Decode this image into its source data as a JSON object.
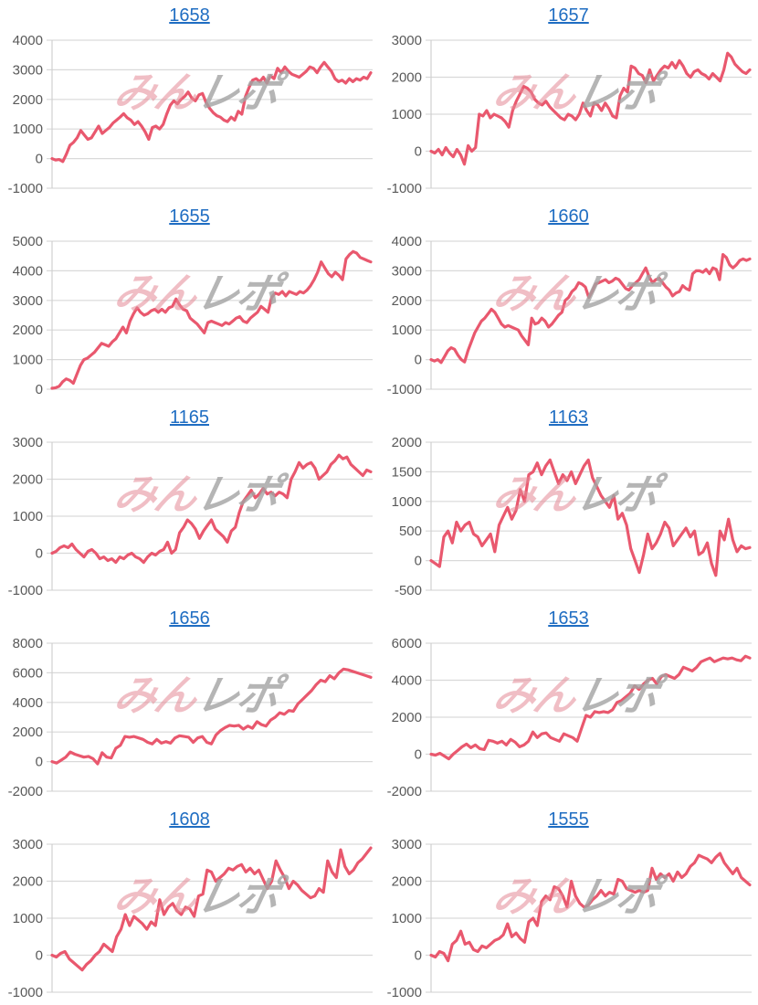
{
  "page": {
    "background": "#ffffff"
  },
  "colors": {
    "line": "#e9586e",
    "grid": "#d9d9d9",
    "axis_line": "#d0d0d0",
    "axis_label": "#595959",
    "title_link": "#1f6dc2",
    "watermark_pink": "#e58a97",
    "watermark_gray": "#a3a3a3"
  },
  "watermark": {
    "pink_text": "みん",
    "gray_text": "レポ"
  },
  "chart_data": [
    {
      "type": "line",
      "title": "1658",
      "xlabel": "",
      "ylabel": "",
      "ylim": [
        -1000,
        4000
      ],
      "yticks": [
        -1000,
        0,
        1000,
        2000,
        3000,
        4000
      ],
      "grid": true,
      "legend": "none",
      "values": [
        0,
        -50,
        -30,
        -100,
        150,
        450,
        550,
        700,
        950,
        800,
        650,
        700,
        900,
        1100,
        850,
        950,
        1050,
        1200,
        1300,
        1400,
        1520,
        1380,
        1300,
        1150,
        1250,
        1100,
        900,
        650,
        1050,
        1100,
        1000,
        1150,
        1500,
        1800,
        1950,
        1850,
        2000,
        2100,
        2250,
        2050,
        1950,
        2150,
        2200,
        1900,
        1700,
        1550,
        1450,
        1400,
        1300,
        1250,
        1400,
        1300,
        1600,
        1500,
        2100,
        2400,
        2650,
        2700,
        2600,
        2750,
        2550,
        2800,
        2700,
        3050,
        2900,
        3100,
        2950,
        2850,
        2800,
        2750,
        2850,
        2950,
        3100,
        3050,
        2900,
        3100,
        3250,
        3100,
        2950,
        2700,
        2600,
        2650,
        2550,
        2700,
        2600,
        2700,
        2650,
        2750,
        2700,
        2900
      ]
    },
    {
      "type": "line",
      "title": "1657",
      "xlabel": "",
      "ylabel": "",
      "ylim": [
        -1000,
        3000
      ],
      "yticks": [
        -1000,
        0,
        1000,
        2000,
        3000
      ],
      "grid": true,
      "legend": "none",
      "values": [
        0,
        -50,
        50,
        -100,
        100,
        -50,
        -150,
        50,
        -100,
        -350,
        150,
        0,
        100,
        1000,
        950,
        1100,
        900,
        1000,
        950,
        900,
        800,
        650,
        1100,
        1350,
        1550,
        1750,
        1700,
        1600,
        1400,
        1300,
        1250,
        1350,
        1200,
        1100,
        1000,
        900,
        850,
        1000,
        950,
        850,
        1000,
        1300,
        1100,
        950,
        1300,
        1250,
        1100,
        1300,
        1150,
        950,
        900,
        1500,
        1700,
        1600,
        2300,
        2250,
        2100,
        2050,
        1850,
        2200,
        1900,
        2050,
        2200,
        2300,
        2250,
        2400,
        2250,
        2450,
        2300,
        2100,
        2000,
        2150,
        2200,
        2100,
        2050,
        1950,
        2100,
        2000,
        1900,
        2200,
        2650,
        2550,
        2350,
        2250,
        2150,
        2100,
        2200
      ]
    },
    {
      "type": "line",
      "title": "1655",
      "xlabel": "",
      "ylabel": "",
      "ylim": [
        0,
        5000
      ],
      "yticks": [
        0,
        1000,
        2000,
        3000,
        4000,
        5000
      ],
      "grid": true,
      "legend": "none",
      "values": [
        30,
        50,
        100,
        250,
        350,
        300,
        200,
        500,
        800,
        1000,
        1050,
        1150,
        1250,
        1400,
        1550,
        1500,
        1450,
        1600,
        1700,
        1900,
        2100,
        1900,
        2300,
        2550,
        2750,
        2600,
        2500,
        2550,
        2650,
        2700,
        2600,
        2700,
        2600,
        2750,
        2800,
        3050,
        2850,
        2700,
        2650,
        2400,
        2300,
        2200,
        2050,
        1900,
        2250,
        2300,
        2250,
        2200,
        2150,
        2250,
        2200,
        2300,
        2400,
        2450,
        2300,
        2250,
        2400,
        2500,
        2600,
        2800,
        2700,
        2600,
        3100,
        3250,
        3200,
        3300,
        3150,
        3300,
        3250,
        3200,
        3300,
        3250,
        3350,
        3500,
        3700,
        3950,
        4300,
        4100,
        3900,
        3800,
        3950,
        3850,
        3700,
        4400,
        4550,
        4650,
        4600,
        4450,
        4400,
        4350,
        4300
      ]
    },
    {
      "type": "line",
      "title": "1660",
      "xlabel": "",
      "ylabel": "",
      "ylim": [
        -1000,
        4000
      ],
      "yticks": [
        -1000,
        0,
        1000,
        2000,
        3000,
        4000
      ],
      "grid": true,
      "legend": "none",
      "values": [
        0,
        -50,
        0,
        -100,
        100,
        300,
        400,
        350,
        150,
        0,
        -80,
        300,
        600,
        900,
        1100,
        1300,
        1400,
        1550,
        1700,
        1600,
        1400,
        1200,
        1100,
        1150,
        1100,
        1050,
        1000,
        800,
        650,
        500,
        1400,
        1200,
        1250,
        1400,
        1300,
        1100,
        1200,
        1350,
        1500,
        1600,
        2000,
        2100,
        2300,
        2400,
        2600,
        2550,
        2450,
        2100,
        2300,
        2550,
        2600,
        2650,
        2700,
        2600,
        2650,
        2750,
        2700,
        2550,
        2400,
        2350,
        2500,
        2600,
        2700,
        2900,
        3100,
        2800,
        2600,
        2700,
        2750,
        2600,
        2450,
        2350,
        2150,
        2250,
        2300,
        2500,
        2400,
        2350,
        2900,
        3000,
        3000,
        2950,
        3050,
        2900,
        3100,
        3050,
        2700,
        3550,
        3450,
        3200,
        3100,
        3200,
        3350,
        3400,
        3350,
        3400
      ]
    },
    {
      "type": "line",
      "title": "1165",
      "xlabel": "",
      "ylabel": "",
      "ylim": [
        -1000,
        3000
      ],
      "yticks": [
        -1000,
        0,
        1000,
        2000,
        3000
      ],
      "grid": true,
      "legend": "none",
      "values": [
        0,
        50,
        150,
        200,
        150,
        250,
        100,
        0,
        -100,
        50,
        100,
        0,
        -150,
        -100,
        -200,
        -150,
        -250,
        -100,
        -150,
        -50,
        0,
        -100,
        -150,
        -250,
        -100,
        0,
        -50,
        50,
        100,
        300,
        0,
        100,
        550,
        700,
        900,
        800,
        650,
        400,
        600,
        750,
        900,
        650,
        550,
        450,
        300,
        600,
        700,
        1100,
        1400,
        1550,
        1700,
        1500,
        1600,
        1750,
        1600,
        1650,
        1550,
        1650,
        1600,
        1500,
        2000,
        2200,
        2450,
        2300,
        2400,
        2450,
        2300,
        2000,
        2100,
        2200,
        2400,
        2500,
        2650,
        2550,
        2600,
        2400,
        2300,
        2200,
        2100,
        2250,
        2200
      ]
    },
    {
      "type": "line",
      "title": "1163",
      "xlabel": "",
      "ylabel": "",
      "ylim": [
        -500,
        2000
      ],
      "yticks": [
        -500,
        0,
        500,
        1000,
        1500,
        2000
      ],
      "grid": true,
      "legend": "none",
      "values": [
        0,
        -50,
        -100,
        400,
        500,
        300,
        650,
        500,
        600,
        650,
        450,
        400,
        250,
        350,
        450,
        150,
        600,
        750,
        900,
        700,
        850,
        1200,
        1000,
        1450,
        1500,
        1650,
        1450,
        1600,
        1700,
        1500,
        1300,
        1450,
        1350,
        1500,
        1300,
        1450,
        1600,
        1700,
        1400,
        1250,
        1100,
        1000,
        900,
        1100,
        700,
        800,
        600,
        200,
        0,
        -200,
        100,
        450,
        200,
        300,
        450,
        650,
        550,
        250,
        350,
        450,
        550,
        400,
        500,
        100,
        150,
        300,
        -50,
        -250,
        500,
        350,
        700,
        350,
        150,
        250,
        200,
        220
      ]
    },
    {
      "type": "line",
      "title": "1656",
      "xlabel": "",
      "ylabel": "",
      "ylim": [
        -2000,
        8000
      ],
      "yticks": [
        -2000,
        0,
        2000,
        4000,
        6000,
        8000
      ],
      "grid": true,
      "legend": "none",
      "values": [
        0,
        -100,
        100,
        300,
        650,
        500,
        400,
        300,
        350,
        200,
        -150,
        600,
        300,
        250,
        900,
        1100,
        1700,
        1650,
        1700,
        1600,
        1500,
        1300,
        1200,
        1500,
        1250,
        1350,
        1250,
        1600,
        1750,
        1700,
        1650,
        1300,
        1600,
        1700,
        1300,
        1200,
        1800,
        2100,
        2300,
        2450,
        2400,
        2450,
        2200,
        2400,
        2250,
        2700,
        2500,
        2400,
        2800,
        3000,
        3300,
        3200,
        3450,
        3400,
        3900,
        4200,
        4500,
        4800,
        5200,
        5500,
        5400,
        5800,
        5600,
        6000,
        6250,
        6200,
        6100,
        6000,
        5900,
        5800,
        5700
      ]
    },
    {
      "type": "line",
      "title": "1653",
      "xlabel": "",
      "ylabel": "",
      "ylim": [
        -2000,
        6000
      ],
      "yticks": [
        -2000,
        0,
        2000,
        4000,
        6000
      ],
      "grid": true,
      "legend": "none",
      "values": [
        0,
        -50,
        50,
        -100,
        -250,
        0,
        200,
        400,
        550,
        350,
        500,
        300,
        250,
        750,
        700,
        600,
        700,
        500,
        800,
        650,
        400,
        500,
        700,
        1200,
        900,
        1100,
        1150,
        900,
        800,
        700,
        1100,
        1000,
        900,
        700,
        1400,
        2100,
        2000,
        2300,
        2250,
        2300,
        2250,
        2400,
        2800,
        2900,
        3100,
        3300,
        3700,
        3500,
        3800,
        4000,
        4100,
        3800,
        4200,
        4300,
        4200,
        4100,
        4300,
        4700,
        4600,
        4500,
        4700,
        5000,
        5100,
        5200,
        5000,
        5100,
        5200,
        5150,
        5200,
        5100,
        5050,
        5300,
        5200
      ]
    },
    {
      "type": "line",
      "title": "1608",
      "xlabel": "",
      "ylabel": "",
      "ylim": [
        -1000,
        3000
      ],
      "yticks": [
        -1000,
        0,
        1000,
        2000,
        3000
      ],
      "grid": true,
      "legend": "none",
      "values": [
        0,
        -50,
        50,
        100,
        -100,
        -200,
        -300,
        -400,
        -250,
        -150,
        0,
        100,
        300,
        200,
        100,
        500,
        700,
        1100,
        800,
        1050,
        950,
        850,
        700,
        900,
        800,
        1500,
        1100,
        1300,
        1400,
        1200,
        1100,
        1300,
        1250,
        1050,
        1600,
        1650,
        2300,
        2250,
        2000,
        2100,
        2200,
        2350,
        2300,
        2400,
        2450,
        2250,
        2350,
        2200,
        2300,
        2050,
        1800,
        2000,
        2550,
        2300,
        2100,
        1800,
        2000,
        1900,
        1750,
        1650,
        1550,
        1600,
        1800,
        1700,
        2550,
        2250,
        2100,
        2850,
        2400,
        2200,
        2300,
        2500,
        2600,
        2750,
        2900
      ]
    },
    {
      "type": "line",
      "title": "1555",
      "xlabel": "",
      "ylabel": "",
      "ylim": [
        -1000,
        3000
      ],
      "yticks": [
        -1000,
        0,
        1000,
        2000,
        3000
      ],
      "grid": true,
      "legend": "none",
      "values": [
        0,
        -50,
        100,
        50,
        -150,
        300,
        400,
        650,
        300,
        350,
        150,
        100,
        250,
        200,
        300,
        400,
        450,
        550,
        850,
        500,
        600,
        450,
        350,
        900,
        1000,
        800,
        1450,
        1600,
        1500,
        1850,
        1800,
        1600,
        1300,
        2000,
        1600,
        1400,
        1300,
        1350,
        1500,
        1600,
        1750,
        1600,
        1700,
        1650,
        2050,
        2000,
        1800,
        1750,
        1700,
        1750,
        1700,
        1750,
        2350,
        2050,
        2200,
        2100,
        2200,
        2000,
        2250,
        2100,
        2200,
        2400,
        2500,
        2700,
        2650,
        2600,
        2500,
        2650,
        2750,
        2500,
        2350,
        2200,
        2350,
        2100,
        2000,
        1900
      ]
    }
  ]
}
